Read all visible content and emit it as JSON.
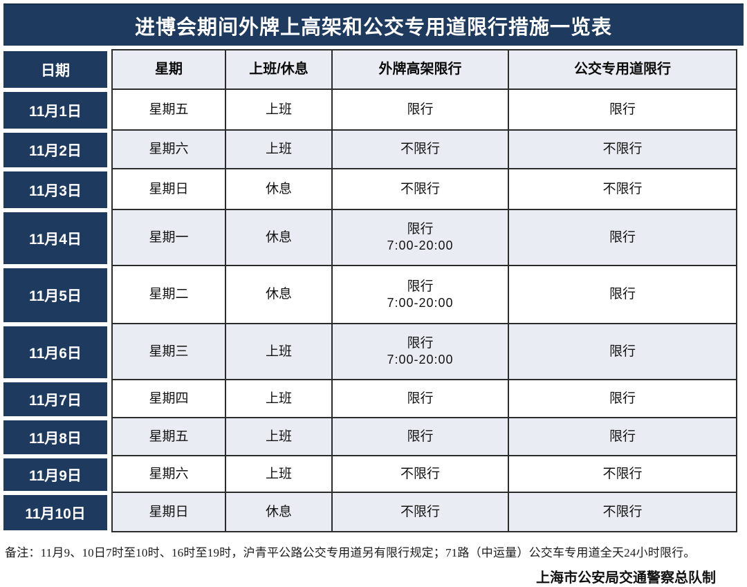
{
  "title": "进博会期间外牌上高架和公交专用道限行措施一览表",
  "table": {
    "headers": {
      "date": "日期",
      "weekday": "星期",
      "work": "上班/休息",
      "elevated": "外牌高架限行",
      "bus": "公交专用道限行"
    },
    "rows": [
      {
        "date": "11月1日",
        "weekday": "星期五",
        "work": "上班",
        "elevated": "限行",
        "bus": "限行"
      },
      {
        "date": "11月2日",
        "weekday": "星期六",
        "work": "上班",
        "elevated": "不限行",
        "bus": "不限行"
      },
      {
        "date": "11月3日",
        "weekday": "星期日",
        "work": "休息",
        "elevated": "不限行",
        "bus": "不限行"
      },
      {
        "date": "11月4日",
        "weekday": "星期一",
        "work": "休息",
        "elevated": "限行",
        "elevated_time": "7:00-20:00",
        "bus": "限行"
      },
      {
        "date": "11月5日",
        "weekday": "星期二",
        "work": "休息",
        "elevated": "限行",
        "elevated_time": "7:00-20:00",
        "bus": "限行"
      },
      {
        "date": "11月6日",
        "weekday": "星期三",
        "work": "上班",
        "elevated": "限行",
        "elevated_time": "7:00-20:00",
        "bus": "限行"
      },
      {
        "date": "11月7日",
        "weekday": "星期四",
        "work": "上班",
        "elevated": "限行",
        "bus": "限行"
      },
      {
        "date": "11月8日",
        "weekday": "星期五",
        "work": "上班",
        "elevated": "限行",
        "bus": "限行"
      },
      {
        "date": "11月9日",
        "weekday": "星期六",
        "work": "上班",
        "elevated": "不限行",
        "bus": "不限行"
      },
      {
        "date": "11月10日",
        "weekday": "星期日",
        "work": "休息",
        "elevated": "不限行",
        "bus": "不限行"
      }
    ]
  },
  "footer": {
    "note": "备注：11月9、10日7时至10时、16时至19时，沪青平公路公交专用道另有限行规定；71路（中运量）公交车专用道全天24小时限行。",
    "attribution": "上海市公安局交通警察总队制"
  },
  "colors": {
    "navy": "#1e3a5f",
    "row_alt": "#e9ecf2",
    "border": "#2b2b2b"
  }
}
